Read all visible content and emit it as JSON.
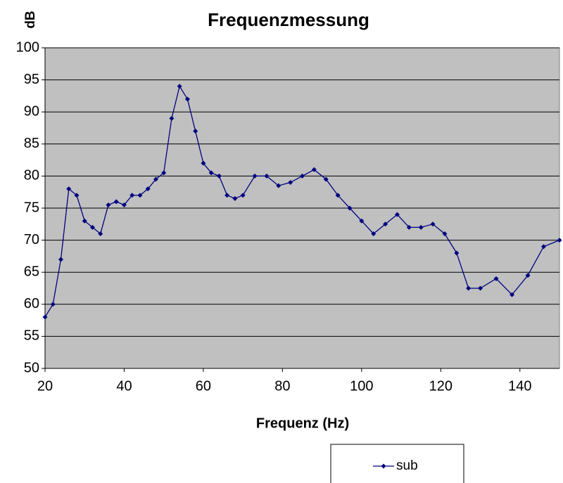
{
  "chart_data": {
    "type": "line",
    "title": "Frequenzmessung",
    "x_label": "Frequenz (Hz)",
    "y_label": "dB",
    "x": [
      20,
      22,
      24,
      26,
      28,
      30,
      32,
      34,
      36,
      38,
      40,
      42,
      44,
      46,
      48,
      50,
      52,
      54,
      56,
      58,
      60,
      62,
      64,
      66,
      68,
      70,
      73,
      76,
      79,
      82,
      85,
      88,
      91,
      94,
      97,
      100,
      103,
      106,
      109,
      112,
      115,
      118,
      121,
      124,
      127,
      130,
      134,
      138,
      142,
      146,
      150
    ],
    "series": [
      {
        "name": "sub",
        "color": "#000080",
        "values": [
          58,
          60,
          67,
          78,
          77,
          73,
          72,
          71,
          75.5,
          76,
          75.5,
          77,
          77,
          78,
          79.5,
          80.5,
          89,
          94,
          92,
          87,
          82,
          80.5,
          80,
          77,
          76.5,
          77,
          80,
          80,
          78.5,
          79,
          80,
          81,
          79.5,
          77,
          75,
          73,
          71,
          72.5,
          74,
          72,
          72,
          72.5,
          71,
          68,
          62.5,
          62.5,
          64,
          61.5,
          64.5,
          69,
          70
        ]
      }
    ],
    "xlim": [
      20,
      150
    ],
    "xticks": [
      20,
      40,
      60,
      80,
      100,
      120,
      140
    ],
    "ylim": [
      50,
      100
    ],
    "yticks": [
      50,
      55,
      60,
      65,
      70,
      75,
      80,
      85,
      90,
      95,
      100
    ],
    "grid": true,
    "plot_background": "#c0c0c0",
    "legend": "bottom"
  }
}
